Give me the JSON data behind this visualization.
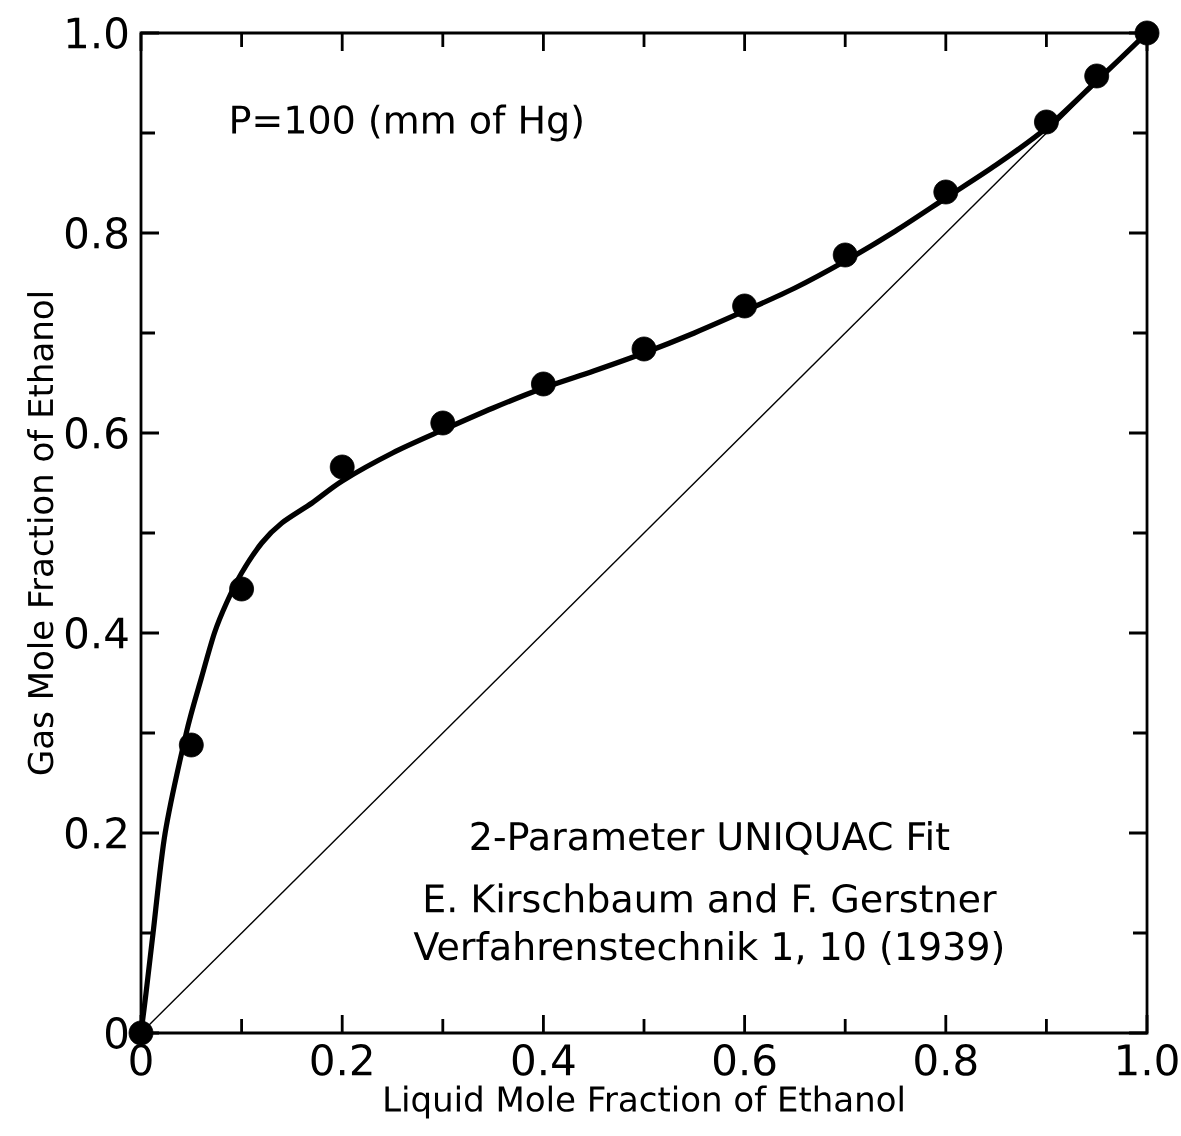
{
  "chart_data": {
    "type": "scatter",
    "xlabel": "Liquid Mole Fraction of Ethanol",
    "ylabel": "Gas Mole Fraction of Ethanol",
    "xlim": [
      0,
      1.0
    ],
    "ylim": [
      0,
      1.0
    ],
    "xticks": [
      0,
      {
        "value": 0.1,
        "label": null
      },
      0.2,
      {
        "value": 0.3,
        "label": null
      },
      0.4,
      {
        "value": 0.5,
        "label": null
      },
      0.6,
      {
        "value": 0.7,
        "label": null
      },
      0.8,
      {
        "value": 0.9,
        "label": null
      },
      {
        "value": 1.0,
        "label": "1.0"
      }
    ],
    "yticks": [
      0,
      {
        "value": 0.1,
        "label": null
      },
      0.2,
      {
        "value": 0.3,
        "label": null
      },
      0.4,
      {
        "value": 0.5,
        "label": null
      },
      0.6,
      {
        "value": 0.7,
        "label": null
      },
      0.8,
      {
        "value": 0.9,
        "label": null
      },
      {
        "value": 1.0,
        "label": "1.0"
      }
    ],
    "grid": false,
    "series": [
      {
        "marker": "circle",
        "color": "#000000",
        "x": [
          0,
          0.05,
          0.1,
          0.2,
          0.3,
          0.4,
          0.5,
          0.6,
          0.7,
          0.8,
          0.9,
          0.95,
          1.0
        ],
        "values": [
          0,
          0.288,
          0.444,
          0.566,
          0.61,
          0.649,
          0.684,
          0.727,
          0.778,
          0.841,
          0.911,
          0.957,
          1.0
        ]
      },
      {
        "type": "line",
        "marker": "none",
        "color": "#000000",
        "x": [
          0,
          0.005,
          0.012,
          0.024,
          0.045,
          0.06,
          0.073,
          0.085,
          0.1,
          0.12,
          0.14,
          0.17,
          0.2,
          0.25,
          0.3,
          0.35,
          0.4,
          0.45,
          0.5,
          0.55,
          0.6,
          0.65,
          0.7,
          0.75,
          0.8,
          0.85,
          0.9,
          0.95,
          1.0
        ],
        "values": [
          0,
          0.04,
          0.1,
          0.2,
          0.3,
          0.355,
          0.4,
          0.43,
          0.46,
          0.49,
          0.51,
          0.53,
          0.552,
          0.58,
          0.603,
          0.625,
          0.645,
          0.662,
          0.68,
          0.7,
          0.722,
          0.745,
          0.772,
          0.802,
          0.835,
          0.868,
          0.905,
          0.952,
          1.0
        ]
      },
      {
        "type": "line",
        "marker": "none",
        "color": "#000000",
        "x": [
          0,
          1.0
        ],
        "values": [
          0,
          1.0
        ]
      }
    ],
    "annotations": [
      "P=100 (mm of Hg)",
      "2-Parameter UNIQUAC Fit",
      "E. Kirschbaum and F. Gerstner",
      "Verfahrenstechnik 1, 10 (1939)"
    ]
  }
}
